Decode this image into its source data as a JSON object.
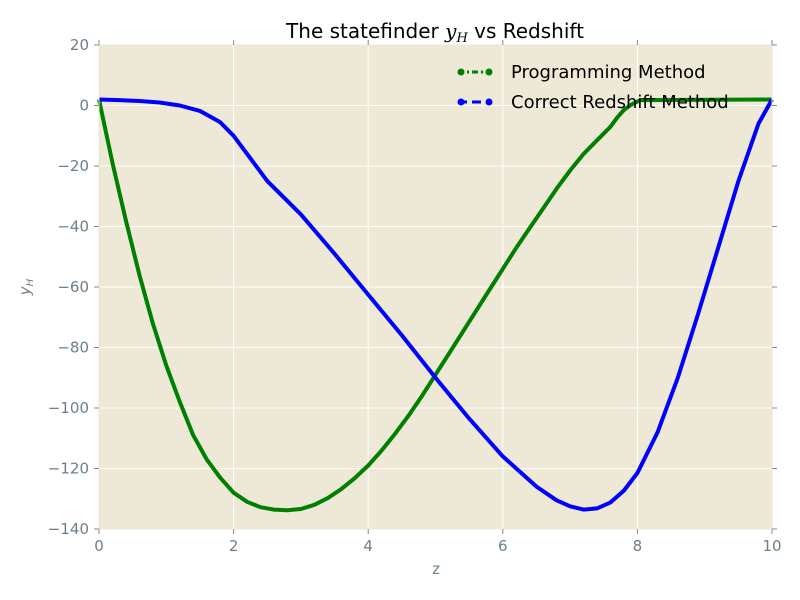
{
  "chart_data": {
    "type": "line",
    "title_prefix": "The statefinder ",
    "title_symbol": "y",
    "title_subscript": "H",
    "title_suffix": " vs Redshift",
    "xlabel": "z",
    "ylabel_symbol": "y",
    "ylabel_subscript": "H",
    "xlim": [
      0,
      10
    ],
    "ylim": [
      -140,
      20
    ],
    "xticks": [
      0,
      2,
      4,
      6,
      8,
      10
    ],
    "yticks": [
      -140,
      -120,
      -100,
      -80,
      -60,
      -40,
      -20,
      0,
      20
    ],
    "grid": true,
    "legend_position": "top-right",
    "colors": {
      "background": "#eee8d6",
      "grid": "#ffffff",
      "tick_text": "#6b7f8a"
    },
    "series": [
      {
        "name": "Programming Method",
        "color": "#008000",
        "style": "dash-dot",
        "x": [
          0,
          0.2,
          0.4,
          0.6,
          0.8,
          1.0,
          1.2,
          1.4,
          1.6,
          1.8,
          2.0,
          2.2,
          2.4,
          2.6,
          2.8,
          3.0,
          3.2,
          3.4,
          3.6,
          3.8,
          4.0,
          4.2,
          4.4,
          4.6,
          4.8,
          5.0,
          5.2,
          5.4,
          5.6,
          5.8,
          6.0,
          6.2,
          6.4,
          6.6,
          6.8,
          7.0,
          7.2,
          7.4,
          7.6,
          7.7,
          7.8,
          7.9,
          8.0,
          8.05,
          10.0
        ],
        "y": [
          2,
          -19,
          -38,
          -56,
          -72,
          -86,
          -98,
          -109,
          -117,
          -123,
          -128,
          -131,
          -132.8,
          -133.6,
          -133.8,
          -133.4,
          -132,
          -129.8,
          -126.8,
          -123.2,
          -119,
          -114,
          -108.5,
          -102.5,
          -96,
          -89,
          -82,
          -75,
          -68,
          -61,
          -54,
          -47,
          -40.5,
          -34,
          -27.5,
          -21.5,
          -16,
          -11.5,
          -7,
          -4,
          -1.5,
          0.2,
          1.3,
          1.8,
          2
        ]
      },
      {
        "name": "Correct Redshift Method",
        "color": "#0000ff",
        "style": "dashed",
        "x": [
          0,
          0.3,
          0.6,
          0.9,
          1.2,
          1.5,
          1.8,
          2.0,
          2.2,
          2.5,
          3.0,
          3.5,
          4.0,
          4.5,
          5.0,
          5.5,
          6.0,
          6.5,
          6.8,
          7.0,
          7.2,
          7.4,
          7.6,
          7.8,
          8.0,
          8.3,
          8.6,
          8.9,
          9.2,
          9.5,
          9.8,
          10.0
        ],
        "y": [
          2,
          1.8,
          1.5,
          1,
          0,
          -1.8,
          -5.5,
          -10,
          -16,
          -25,
          -36,
          -49,
          -62.5,
          -76,
          -90,
          -103.5,
          -116,
          -126,
          -130.5,
          -132.5,
          -133.6,
          -133.2,
          -131.2,
          -127.3,
          -121.5,
          -108,
          -90,
          -69,
          -47,
          -25,
          -6,
          2
        ]
      }
    ]
  }
}
